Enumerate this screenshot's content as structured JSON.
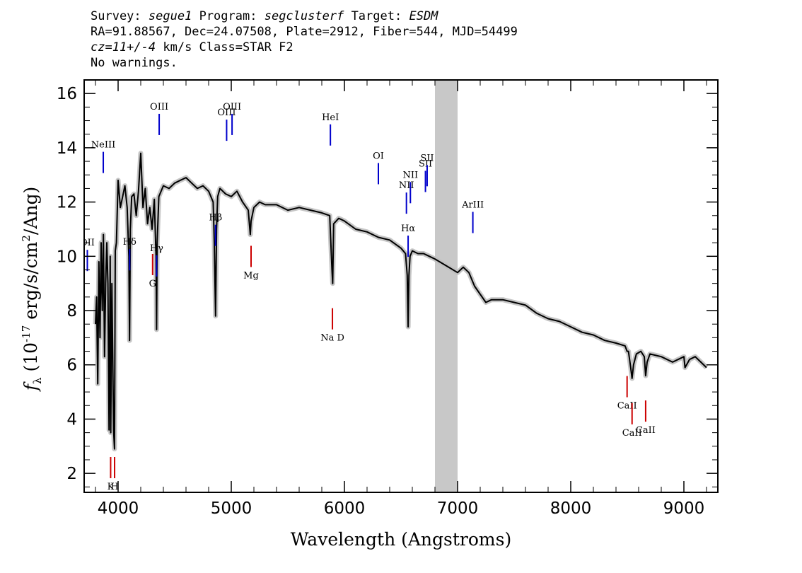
{
  "header": {
    "survey_label": "Survey:",
    "survey": "segue1",
    "program_label": "Program:",
    "program": "segclusterf",
    "target_label": "Target:",
    "target": "ESDM",
    "line2": "RA=91.88567, Dec=24.07508, Plate=2912, Fiber=544, MJD=54499",
    "cz_value": "cz=11+/-4",
    "cz_rest": " km/s Class=STAR F2",
    "warnings": "No warnings."
  },
  "chart_data": {
    "type": "line",
    "title": "",
    "xlabel": "Wavelength (Angstroms)",
    "ylabel_main": "f",
    "ylabel_sub": "λ",
    "ylabel_unit": "(10",
    "ylabel_exp": "-17",
    "ylabel_rest": "erg/s/cm",
    "ylabel_exp2": "2",
    "ylabel_end": "/Ang)",
    "xlim": [
      3700,
      9300
    ],
    "ylim": [
      1.3,
      16.5
    ],
    "x_ticks": [
      4000,
      5000,
      6000,
      7000,
      8000,
      9000
    ],
    "y_ticks": [
      2,
      4,
      6,
      8,
      10,
      12,
      14,
      16
    ],
    "masked_region": [
      6800,
      7000
    ],
    "colors": {
      "flux": "#000000",
      "error": "#c0c0c0",
      "emission": "#0000cc",
      "absorption": "#cc0000",
      "mask": "#c8c8c8"
    },
    "spectrum": {
      "x": [
        3800,
        3810,
        3820,
        3830,
        3840,
        3850,
        3860,
        3870,
        3880,
        3890,
        3900,
        3910,
        3920,
        3930,
        3935,
        3945,
        3960,
        3968,
        3975,
        3985,
        4000,
        4020,
        4040,
        4060,
        4080,
        4095,
        4101,
        4108,
        4120,
        4140,
        4160,
        4180,
        4200,
        4220,
        4240,
        4260,
        4280,
        4300,
        4320,
        4335,
        4340,
        4345,
        4360,
        4400,
        4450,
        4500,
        4550,
        4600,
        4650,
        4700,
        4750,
        4800,
        4840,
        4850,
        4861,
        4870,
        4880,
        4900,
        4950,
        5000,
        5050,
        5100,
        5150,
        5168,
        5175,
        5200,
        5250,
        5300,
        5400,
        5500,
        5600,
        5700,
        5800,
        5870,
        5890,
        5896,
        5905,
        5950,
        6000,
        6100,
        6200,
        6300,
        6400,
        6500,
        6540,
        6555,
        6563,
        6570,
        6580,
        6600,
        6650,
        6700,
        6750,
        6800,
        7000,
        7050,
        7100,
        7150,
        7200,
        7250,
        7300,
        7400,
        7500,
        7600,
        7700,
        7800,
        7900,
        8000,
        8100,
        8200,
        8300,
        8400,
        8480,
        8498,
        8510,
        8530,
        8542,
        8555,
        8580,
        8620,
        8650,
        8662,
        8675,
        8700,
        8800,
        8900,
        9000,
        9010,
        9050,
        9100,
        9150,
        9200
      ],
      "y": [
        7.5,
        8.5,
        5.3,
        9.8,
        7.0,
        10.5,
        8.0,
        10.8,
        6.3,
        9.0,
        10.5,
        9.0,
        3.6,
        10.0,
        3.5,
        9.0,
        3.6,
        2.9,
        10.2,
        10.5,
        12.8,
        11.8,
        12.2,
        12.6,
        11.8,
        10.0,
        6.9,
        11.0,
        12.2,
        12.3,
        11.5,
        12.4,
        13.8,
        11.8,
        12.5,
        11.2,
        11.8,
        11.0,
        12.1,
        10.0,
        7.3,
        10.5,
        12.2,
        12.6,
        12.5,
        12.7,
        12.8,
        12.9,
        12.7,
        12.5,
        12.6,
        12.4,
        12.0,
        10.5,
        7.8,
        11.0,
        12.2,
        12.5,
        12.3,
        12.2,
        12.4,
        12.0,
        11.7,
        10.8,
        11.3,
        11.8,
        12.0,
        11.9,
        11.9,
        11.7,
        11.8,
        11.7,
        11.6,
        11.5,
        9.5,
        9.0,
        11.2,
        11.4,
        11.3,
        11.0,
        10.9,
        10.7,
        10.6,
        10.3,
        10.1,
        9.3,
        7.4,
        9.3,
        10.0,
        10.2,
        10.1,
        10.1,
        10.0,
        9.9,
        9.4,
        9.6,
        9.4,
        8.9,
        8.6,
        8.3,
        8.4,
        8.4,
        8.3,
        8.2,
        7.9,
        7.7,
        7.6,
        7.4,
        7.2,
        7.1,
        6.9,
        6.8,
        6.7,
        6.5,
        6.5,
        5.9,
        5.5,
        6.0,
        6.4,
        6.5,
        6.3,
        5.6,
        6.1,
        6.4,
        6.3,
        6.1,
        6.3,
        5.9,
        6.2,
        6.3,
        6.1,
        5.9
      ]
    },
    "emission_lines": [
      {
        "label": "OII",
        "wave": 3728
      },
      {
        "label": "NeIII",
        "wave": 3869
      },
      {
        "label": "Hδ",
        "wave": 4102
      },
      {
        "label": "Hγ",
        "wave": 4340
      },
      {
        "label": "OIII",
        "wave": 4363
      },
      {
        "label": "Hβ",
        "wave": 4861
      },
      {
        "label": "OIII",
        "wave": 4959
      },
      {
        "label": "OIII",
        "wave": 5007
      },
      {
        "label": "HeI",
        "wave": 5876
      },
      {
        "label": "OI",
        "wave": 6300
      },
      {
        "label": "NII",
        "wave": 6548
      },
      {
        "label": "Hα",
        "wave": 6563
      },
      {
        "label": "NII",
        "wave": 6583
      },
      {
        "label": "SII",
        "wave": 6716
      },
      {
        "label": "SII",
        "wave": 6731
      },
      {
        "label": "ArIII",
        "wave": 7135
      }
    ],
    "absorption_lines": [
      {
        "label": "K",
        "wave": 3934
      },
      {
        "label": "H",
        "wave": 3969
      },
      {
        "label": "G",
        "wave": 4305
      },
      {
        "label": "Mg",
        "wave": 5175
      },
      {
        "label": "Na D",
        "wave": 5894
      },
      {
        "label": "CaII",
        "wave": 8498
      },
      {
        "label": "CaII",
        "wave": 8542
      },
      {
        "label": "CaII",
        "wave": 8662
      }
    ]
  }
}
